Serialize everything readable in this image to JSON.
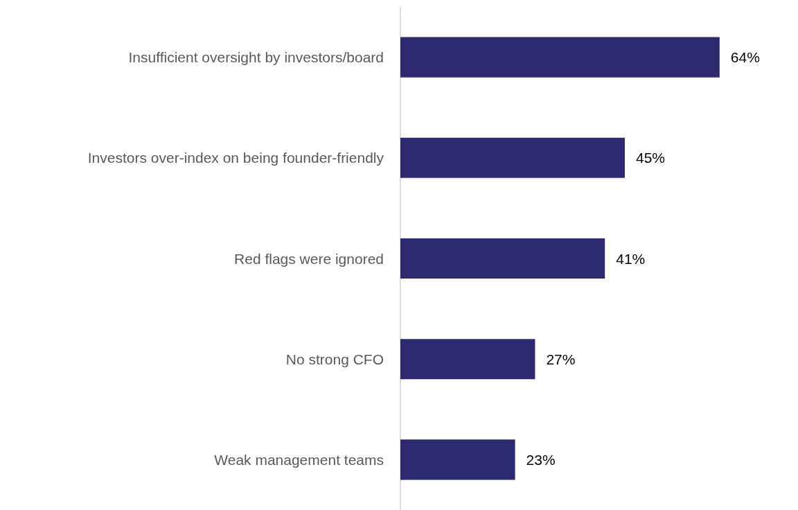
{
  "chart_data": {
    "type": "bar",
    "orientation": "horizontal",
    "categories": [
      "Insufficient oversight by investors/board",
      "Investors over-index on being founder-friendly",
      "Red flags were ignored",
      "No strong CFO",
      "Weak management teams"
    ],
    "values": [
      64,
      45,
      41,
      27,
      23
    ],
    "value_labels": [
      "64%",
      "45%",
      "41%",
      "27%",
      "23%"
    ],
    "color": "#2e2a72"
  }
}
